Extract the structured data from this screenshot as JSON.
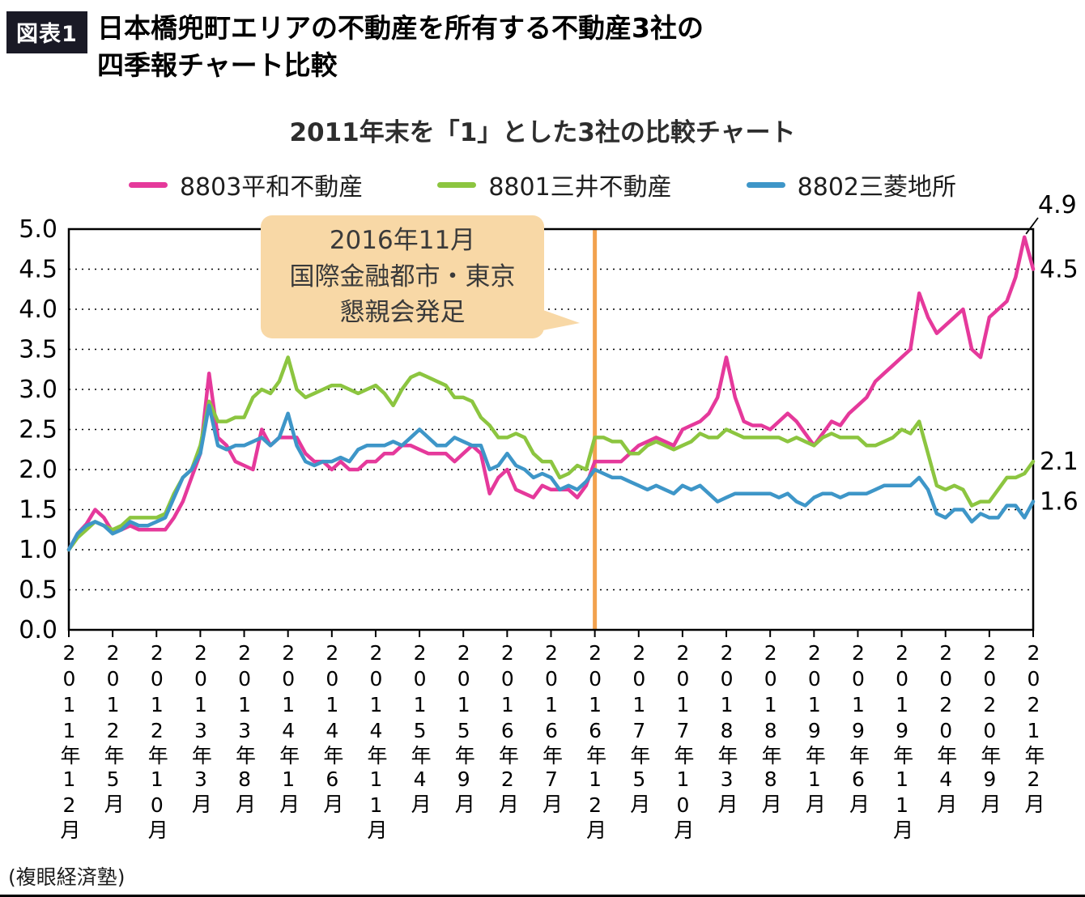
{
  "header": {
    "badge": "図表1",
    "badge_bg": "#1a1a26",
    "title_line1": "日本橋兜町エリアの不動産を所有する不動産3社の",
    "title_line2": "四季報チャート比較"
  },
  "source": "(複眼経済塾)",
  "chart_data": {
    "type": "line",
    "title": "2011年末を「1」とした3社の比較チャート",
    "xlabel": "",
    "ylabel": "",
    "ylim": [
      0.0,
      5.0
    ],
    "ytick_step": 0.5,
    "grid": "dotted-horizontal",
    "legend_position": "top",
    "x_tick_labels": [
      "2011年12月",
      "2012年5月",
      "2012年10月",
      "2013年3月",
      "2013年8月",
      "2014年1月",
      "2014年6月",
      "2014年11月",
      "2015年4月",
      "2015年9月",
      "2016年2月",
      "2016年7月",
      "2016年12月",
      "2017年5月",
      "2017年10月",
      "2018年3月",
      "2018年8月",
      "2019年1月",
      "2019年6月",
      "2019年11月",
      "2020年4月",
      "2020年9月",
      "2021年2月"
    ],
    "x_tick_indices": [
      0,
      5,
      10,
      15,
      20,
      25,
      30,
      35,
      40,
      45,
      50,
      55,
      60,
      65,
      70,
      75,
      80,
      85,
      90,
      95,
      100,
      105,
      110
    ],
    "series": [
      {
        "name": "8803平和不動産",
        "color": "#e5399b",
        "values": [
          1.0,
          1.2,
          1.32,
          1.5,
          1.4,
          1.22,
          1.25,
          1.3,
          1.25,
          1.25,
          1.25,
          1.25,
          1.4,
          1.6,
          1.9,
          2.2,
          3.2,
          2.4,
          2.3,
          2.1,
          2.05,
          2.0,
          2.5,
          2.3,
          2.4,
          2.4,
          2.4,
          2.2,
          2.1,
          2.1,
          2.0,
          2.1,
          2.0,
          2.0,
          2.1,
          2.1,
          2.2,
          2.2,
          2.3,
          2.3,
          2.25,
          2.2,
          2.2,
          2.2,
          2.1,
          2.2,
          2.3,
          2.2,
          1.7,
          1.9,
          2.0,
          1.75,
          1.7,
          1.65,
          1.8,
          1.75,
          1.75,
          1.75,
          1.65,
          1.8,
          2.1,
          2.1,
          2.1,
          2.1,
          2.2,
          2.3,
          2.35,
          2.4,
          2.35,
          2.3,
          2.5,
          2.55,
          2.6,
          2.7,
          2.9,
          3.4,
          2.9,
          2.6,
          2.55,
          2.55,
          2.5,
          2.6,
          2.7,
          2.6,
          2.45,
          2.3,
          2.45,
          2.6,
          2.55,
          2.7,
          2.8,
          2.9,
          3.1,
          3.2,
          3.3,
          3.4,
          3.5,
          4.2,
          3.9,
          3.7,
          3.8,
          3.9,
          4.0,
          3.5,
          3.4,
          3.9,
          4.0,
          4.1,
          4.4,
          4.9,
          4.5
        ]
      },
      {
        "name": "8801三井不動産",
        "color": "#8cc540",
        "values": [
          1.0,
          1.15,
          1.25,
          1.35,
          1.3,
          1.25,
          1.3,
          1.4,
          1.4,
          1.4,
          1.4,
          1.45,
          1.7,
          1.9,
          2.0,
          2.3,
          2.85,
          2.6,
          2.6,
          2.65,
          2.65,
          2.9,
          3.0,
          2.95,
          3.1,
          3.4,
          3.0,
          2.9,
          2.95,
          3.0,
          3.05,
          3.05,
          3.0,
          2.95,
          3.0,
          3.05,
          2.95,
          2.8,
          3.0,
          3.15,
          3.2,
          3.15,
          3.1,
          3.05,
          2.9,
          2.9,
          2.85,
          2.65,
          2.55,
          2.4,
          2.4,
          2.45,
          2.4,
          2.2,
          2.1,
          2.1,
          1.9,
          1.95,
          2.05,
          2.0,
          2.4,
          2.4,
          2.35,
          2.35,
          2.2,
          2.2,
          2.3,
          2.35,
          2.3,
          2.25,
          2.3,
          2.35,
          2.45,
          2.4,
          2.4,
          2.5,
          2.45,
          2.4,
          2.4,
          2.4,
          2.4,
          2.4,
          2.35,
          2.4,
          2.35,
          2.3,
          2.4,
          2.45,
          2.4,
          2.4,
          2.4,
          2.3,
          2.3,
          2.35,
          2.4,
          2.5,
          2.45,
          2.6,
          2.2,
          1.8,
          1.75,
          1.8,
          1.75,
          1.55,
          1.6,
          1.6,
          1.75,
          1.9,
          1.9,
          1.95,
          2.1
        ]
      },
      {
        "name": "8802三菱地所",
        "color": "#3e96c8",
        "values": [
          1.0,
          1.2,
          1.3,
          1.35,
          1.3,
          1.2,
          1.25,
          1.35,
          1.3,
          1.3,
          1.35,
          1.4,
          1.65,
          1.9,
          2.0,
          2.2,
          2.8,
          2.3,
          2.25,
          2.3,
          2.3,
          2.35,
          2.4,
          2.3,
          2.4,
          2.7,
          2.3,
          2.1,
          2.05,
          2.1,
          2.1,
          2.15,
          2.1,
          2.25,
          2.3,
          2.3,
          2.3,
          2.35,
          2.3,
          2.4,
          2.5,
          2.4,
          2.3,
          2.3,
          2.4,
          2.35,
          2.3,
          2.3,
          2.0,
          2.05,
          2.2,
          2.05,
          2.0,
          1.9,
          1.95,
          1.9,
          1.75,
          1.8,
          1.75,
          1.85,
          2.0,
          1.95,
          1.9,
          1.9,
          1.85,
          1.8,
          1.75,
          1.8,
          1.75,
          1.7,
          1.8,
          1.75,
          1.8,
          1.7,
          1.6,
          1.65,
          1.7,
          1.7,
          1.7,
          1.7,
          1.7,
          1.65,
          1.7,
          1.6,
          1.55,
          1.65,
          1.7,
          1.7,
          1.65,
          1.7,
          1.7,
          1.7,
          1.75,
          1.8,
          1.8,
          1.8,
          1.8,
          1.9,
          1.75,
          1.45,
          1.4,
          1.5,
          1.5,
          1.35,
          1.45,
          1.4,
          1.4,
          1.55,
          1.55,
          1.4,
          1.6
        ]
      }
    ],
    "event_line": {
      "x_index": 60,
      "color": "#f2a24e"
    },
    "annotation": {
      "bg": "#f8d8a6",
      "lines": [
        "2016年11月",
        "国際金融都市・東京",
        "懇親会発足"
      ]
    },
    "end_labels": [
      {
        "text": "4.9",
        "value": 4.9,
        "x_index": 109,
        "leader": true
      },
      {
        "text": "4.5",
        "value": 4.5
      },
      {
        "text": "2.1",
        "value": 2.1
      },
      {
        "text": "1.6",
        "value": 1.6
      }
    ]
  }
}
